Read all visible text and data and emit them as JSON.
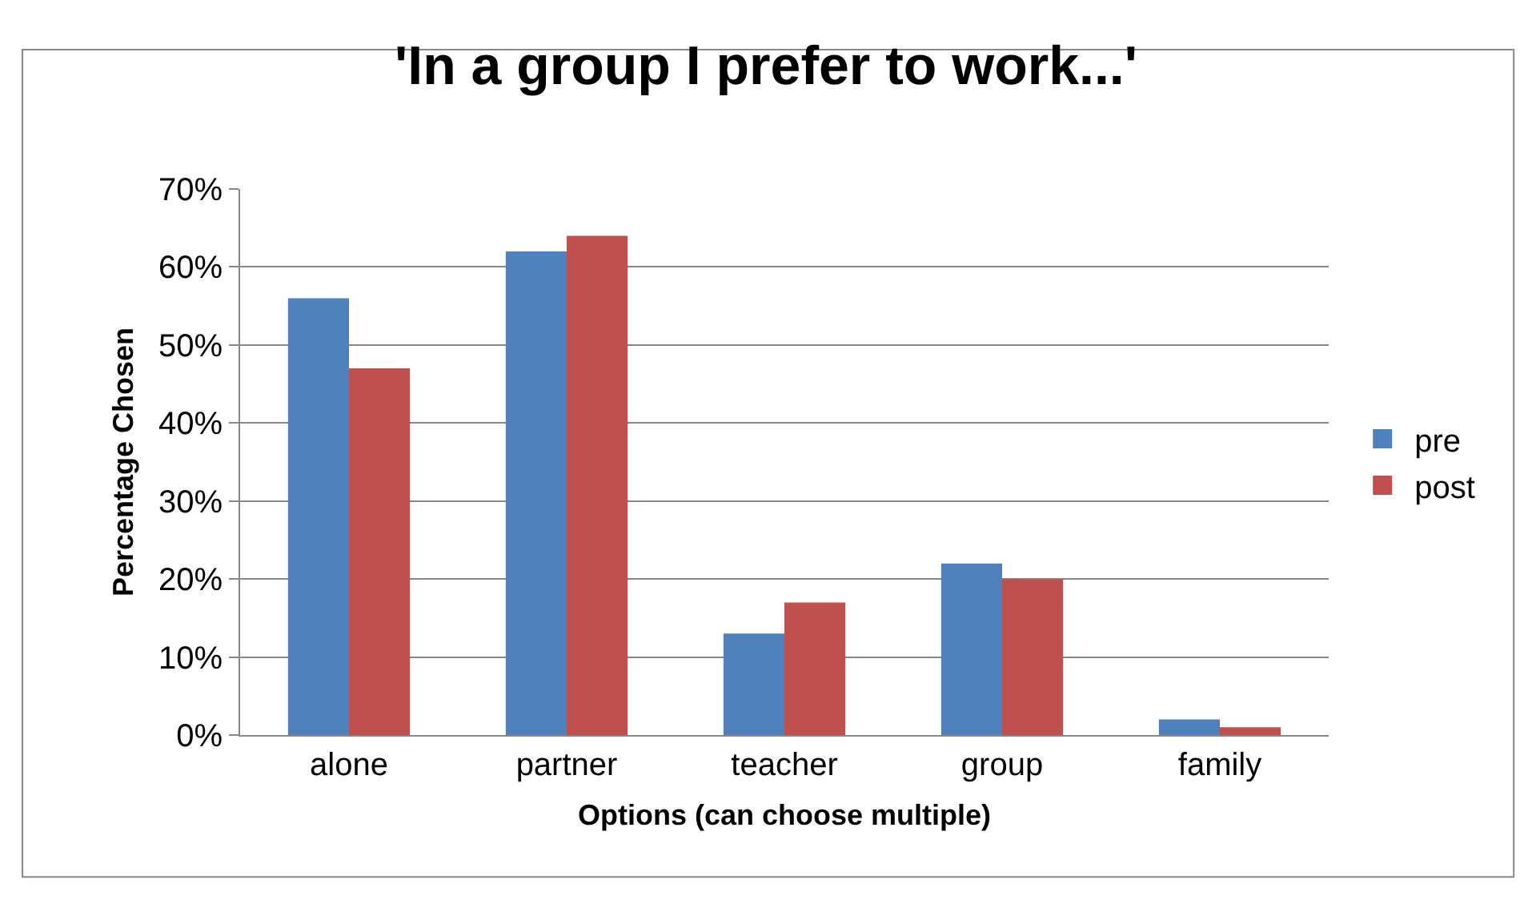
{
  "chart_data": {
    "type": "bar",
    "title": "'In a group I prefer to work...'",
    "xlabel": "Options (can choose multiple)",
    "ylabel": "Percentage Chosen",
    "categories": [
      "alone",
      "partner",
      "teacher",
      "group",
      "family"
    ],
    "series": [
      {
        "name": "pre",
        "color": "#4f81bd",
        "values": [
          56,
          62,
          13,
          22,
          2
        ]
      },
      {
        "name": "post",
        "color": "#c0504d",
        "values": [
          47,
          64,
          17,
          20,
          1
        ]
      }
    ],
    "ylim": [
      0,
      70
    ],
    "yticks": [
      {
        "value": 0,
        "label": "0%"
      },
      {
        "value": 10,
        "label": "10%"
      },
      {
        "value": 20,
        "label": "20%"
      },
      {
        "value": 30,
        "label": "30%"
      },
      {
        "value": 40,
        "label": "40%"
      },
      {
        "value": 50,
        "label": "50%"
      },
      {
        "value": 60,
        "label": "60%"
      },
      {
        "value": 70,
        "label": "70%"
      }
    ],
    "grid": "y",
    "legend": "right"
  }
}
